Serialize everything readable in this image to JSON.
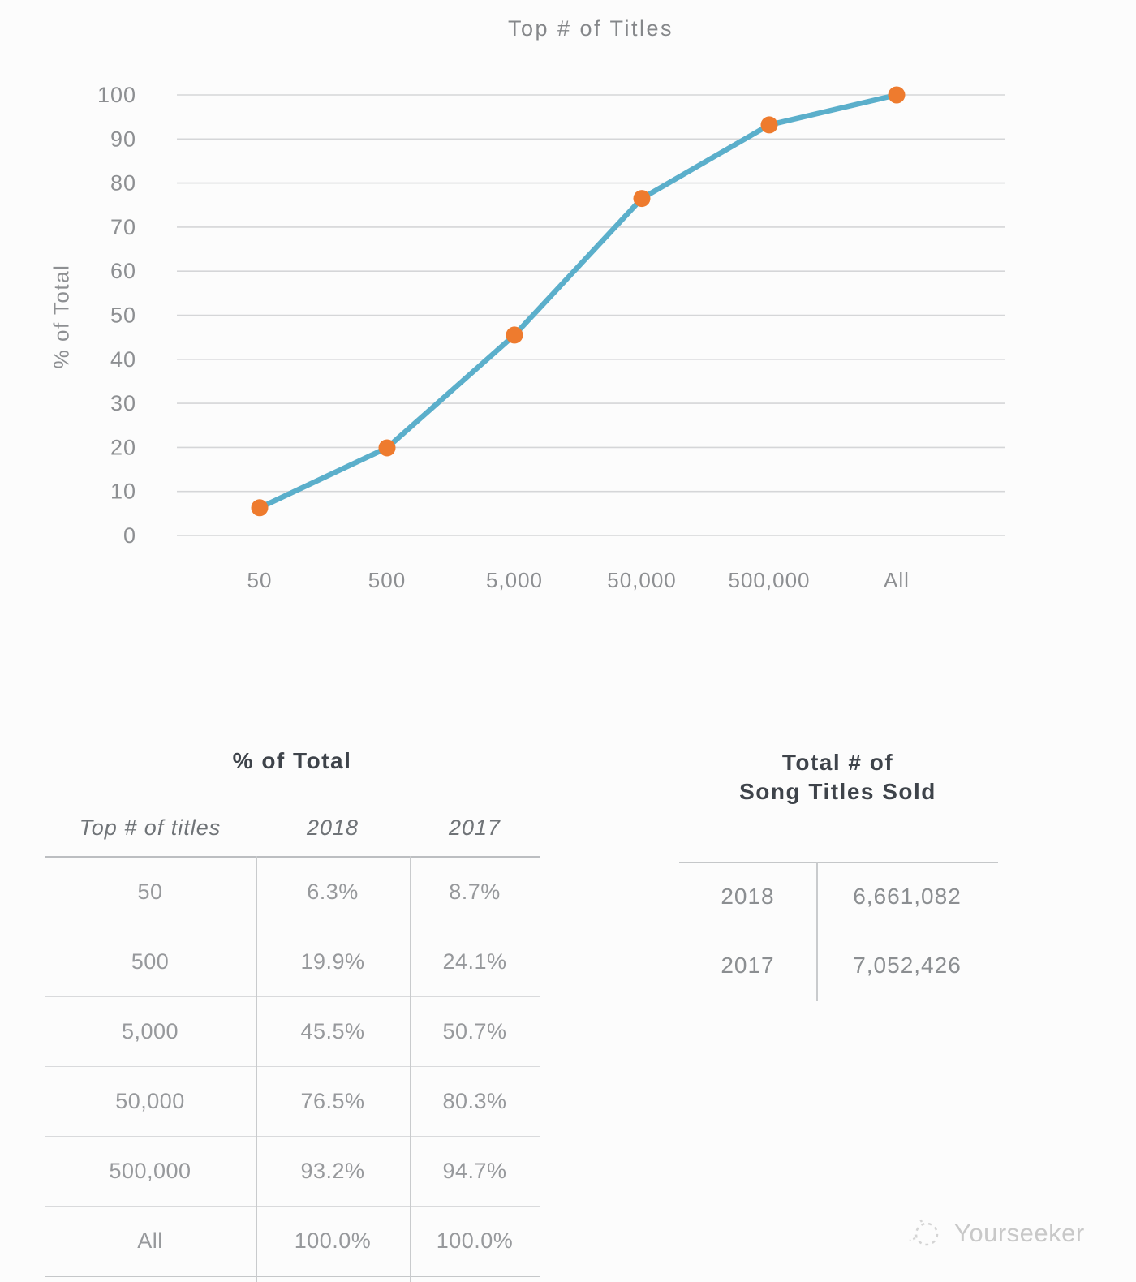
{
  "chart_data": {
    "type": "line",
    "title": "Top # of Titles",
    "xlabel": "",
    "ylabel": "% of Total",
    "categories": [
      "50",
      "500",
      "5,000",
      "50,000",
      "500,000",
      "All"
    ],
    "series": [
      {
        "name": "2018",
        "values": [
          6.3,
          19.9,
          45.5,
          76.5,
          93.2,
          100.0
        ]
      }
    ],
    "ylim": [
      0,
      100
    ],
    "ytick_step": 10,
    "grid": true,
    "legend_position": "none",
    "line_color": "#5BAFCB",
    "marker_color": "#EE7B2E",
    "gridline_color": "#d5d6d8",
    "tick_label_color": "#8d8f92"
  },
  "pct_table": {
    "title": "% of Total",
    "columns": [
      "Top # of titles",
      "2018",
      "2017"
    ],
    "rows": [
      {
        "label": "50",
        "y2018": "6.3%",
        "y2017": "8.7%"
      },
      {
        "label": "500",
        "y2018": "19.9%",
        "y2017": "24.1%"
      },
      {
        "label": "5,000",
        "y2018": "45.5%",
        "y2017": "50.7%"
      },
      {
        "label": "50,000",
        "y2018": "76.5%",
        "y2017": "80.3%"
      },
      {
        "label": "500,000",
        "y2018": "93.2%",
        "y2017": "94.7%"
      },
      {
        "label": "All",
        "y2018": "100.0%",
        "y2017": "100.0%"
      }
    ]
  },
  "totals_table": {
    "title_line1": "Total # of",
    "title_line2": "Song Titles Sold",
    "rows": [
      {
        "year": "2018",
        "total": "6,661,082"
      },
      {
        "year": "2017",
        "total": "7,052,426"
      }
    ]
  },
  "watermark": {
    "label": "Yourseeker",
    "icon": "sketch-circle-logo"
  }
}
